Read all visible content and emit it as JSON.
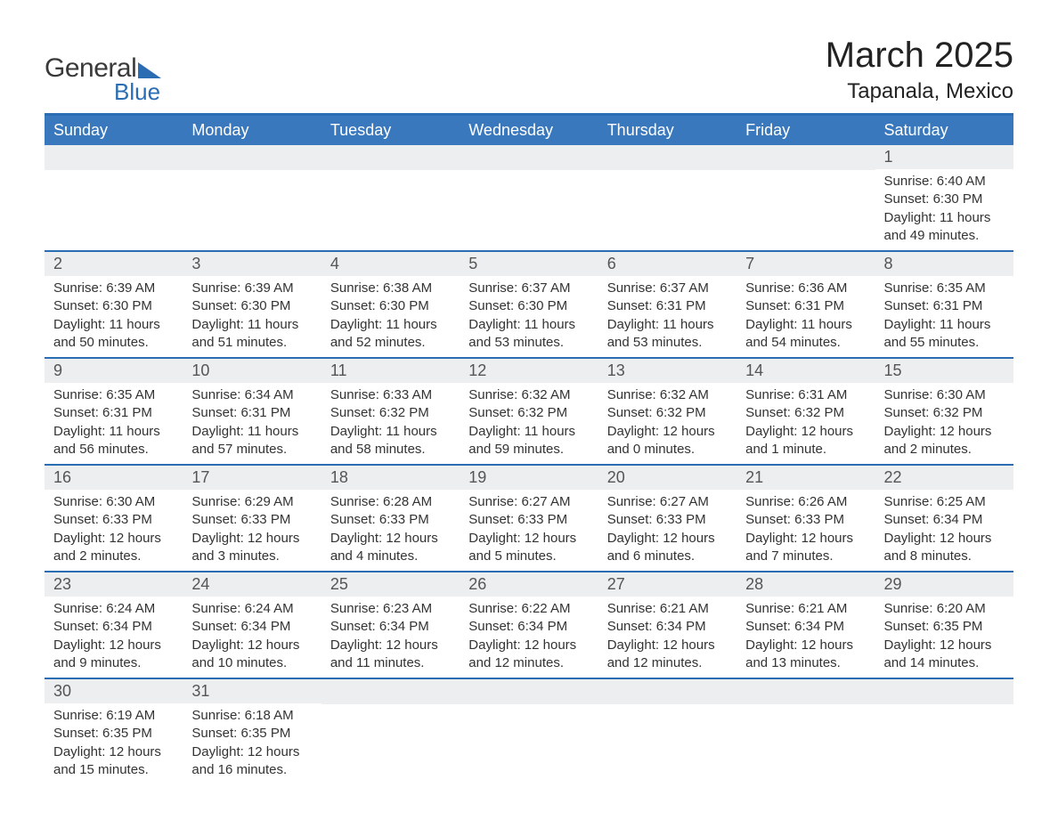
{
  "brand": {
    "name_part1": "General",
    "name_part2": "Blue",
    "triangle_color": "#2a6db3",
    "text_color": "#3a3a3a",
    "blue_color": "#2a6db3"
  },
  "header": {
    "month_title": "March 2025",
    "location": "Tapanala, Mexico"
  },
  "styling": {
    "header_bg": "#3a78bd",
    "header_text": "#ffffff",
    "border_color": "#2a6db3",
    "daynum_bg": "#eceeef",
    "daynum_text": "#555555",
    "body_text": "#333333",
    "page_bg": "#ffffff",
    "title_fontsize": 40,
    "location_fontsize": 24,
    "header_fontsize": 18,
    "daynum_fontsize": 18,
    "body_fontsize": 15
  },
  "day_headers": [
    "Sunday",
    "Monday",
    "Tuesday",
    "Wednesday",
    "Thursday",
    "Friday",
    "Saturday"
  ],
  "labels": {
    "sunrise": "Sunrise: ",
    "sunset": "Sunset: ",
    "daylight": "Daylight: "
  },
  "weeks": [
    [
      null,
      null,
      null,
      null,
      null,
      null,
      {
        "n": "1",
        "sunrise": "6:40 AM",
        "sunset": "6:30 PM",
        "daylight": "11 hours and 49 minutes."
      }
    ],
    [
      {
        "n": "2",
        "sunrise": "6:39 AM",
        "sunset": "6:30 PM",
        "daylight": "11 hours and 50 minutes."
      },
      {
        "n": "3",
        "sunrise": "6:39 AM",
        "sunset": "6:30 PM",
        "daylight": "11 hours and 51 minutes."
      },
      {
        "n": "4",
        "sunrise": "6:38 AM",
        "sunset": "6:30 PM",
        "daylight": "11 hours and 52 minutes."
      },
      {
        "n": "5",
        "sunrise": "6:37 AM",
        "sunset": "6:30 PM",
        "daylight": "11 hours and 53 minutes."
      },
      {
        "n": "6",
        "sunrise": "6:37 AM",
        "sunset": "6:31 PM",
        "daylight": "11 hours and 53 minutes."
      },
      {
        "n": "7",
        "sunrise": "6:36 AM",
        "sunset": "6:31 PM",
        "daylight": "11 hours and 54 minutes."
      },
      {
        "n": "8",
        "sunrise": "6:35 AM",
        "sunset": "6:31 PM",
        "daylight": "11 hours and 55 minutes."
      }
    ],
    [
      {
        "n": "9",
        "sunrise": "6:35 AM",
        "sunset": "6:31 PM",
        "daylight": "11 hours and 56 minutes."
      },
      {
        "n": "10",
        "sunrise": "6:34 AM",
        "sunset": "6:31 PM",
        "daylight": "11 hours and 57 minutes."
      },
      {
        "n": "11",
        "sunrise": "6:33 AM",
        "sunset": "6:32 PM",
        "daylight": "11 hours and 58 minutes."
      },
      {
        "n": "12",
        "sunrise": "6:32 AM",
        "sunset": "6:32 PM",
        "daylight": "11 hours and 59 minutes."
      },
      {
        "n": "13",
        "sunrise": "6:32 AM",
        "sunset": "6:32 PM",
        "daylight": "12 hours and 0 minutes."
      },
      {
        "n": "14",
        "sunrise": "6:31 AM",
        "sunset": "6:32 PM",
        "daylight": "12 hours and 1 minute."
      },
      {
        "n": "15",
        "sunrise": "6:30 AM",
        "sunset": "6:32 PM",
        "daylight": "12 hours and 2 minutes."
      }
    ],
    [
      {
        "n": "16",
        "sunrise": "6:30 AM",
        "sunset": "6:33 PM",
        "daylight": "12 hours and 2 minutes."
      },
      {
        "n": "17",
        "sunrise": "6:29 AM",
        "sunset": "6:33 PM",
        "daylight": "12 hours and 3 minutes."
      },
      {
        "n": "18",
        "sunrise": "6:28 AM",
        "sunset": "6:33 PM",
        "daylight": "12 hours and 4 minutes."
      },
      {
        "n": "19",
        "sunrise": "6:27 AM",
        "sunset": "6:33 PM",
        "daylight": "12 hours and 5 minutes."
      },
      {
        "n": "20",
        "sunrise": "6:27 AM",
        "sunset": "6:33 PM",
        "daylight": "12 hours and 6 minutes."
      },
      {
        "n": "21",
        "sunrise": "6:26 AM",
        "sunset": "6:33 PM",
        "daylight": "12 hours and 7 minutes."
      },
      {
        "n": "22",
        "sunrise": "6:25 AM",
        "sunset": "6:34 PM",
        "daylight": "12 hours and 8 minutes."
      }
    ],
    [
      {
        "n": "23",
        "sunrise": "6:24 AM",
        "sunset": "6:34 PM",
        "daylight": "12 hours and 9 minutes."
      },
      {
        "n": "24",
        "sunrise": "6:24 AM",
        "sunset": "6:34 PM",
        "daylight": "12 hours and 10 minutes."
      },
      {
        "n": "25",
        "sunrise": "6:23 AM",
        "sunset": "6:34 PM",
        "daylight": "12 hours and 11 minutes."
      },
      {
        "n": "26",
        "sunrise": "6:22 AM",
        "sunset": "6:34 PM",
        "daylight": "12 hours and 12 minutes."
      },
      {
        "n": "27",
        "sunrise": "6:21 AM",
        "sunset": "6:34 PM",
        "daylight": "12 hours and 12 minutes."
      },
      {
        "n": "28",
        "sunrise": "6:21 AM",
        "sunset": "6:34 PM",
        "daylight": "12 hours and 13 minutes."
      },
      {
        "n": "29",
        "sunrise": "6:20 AM",
        "sunset": "6:35 PM",
        "daylight": "12 hours and 14 minutes."
      }
    ],
    [
      {
        "n": "30",
        "sunrise": "6:19 AM",
        "sunset": "6:35 PM",
        "daylight": "12 hours and 15 minutes."
      },
      {
        "n": "31",
        "sunrise": "6:18 AM",
        "sunset": "6:35 PM",
        "daylight": "12 hours and 16 minutes."
      },
      null,
      null,
      null,
      null,
      null
    ]
  ]
}
